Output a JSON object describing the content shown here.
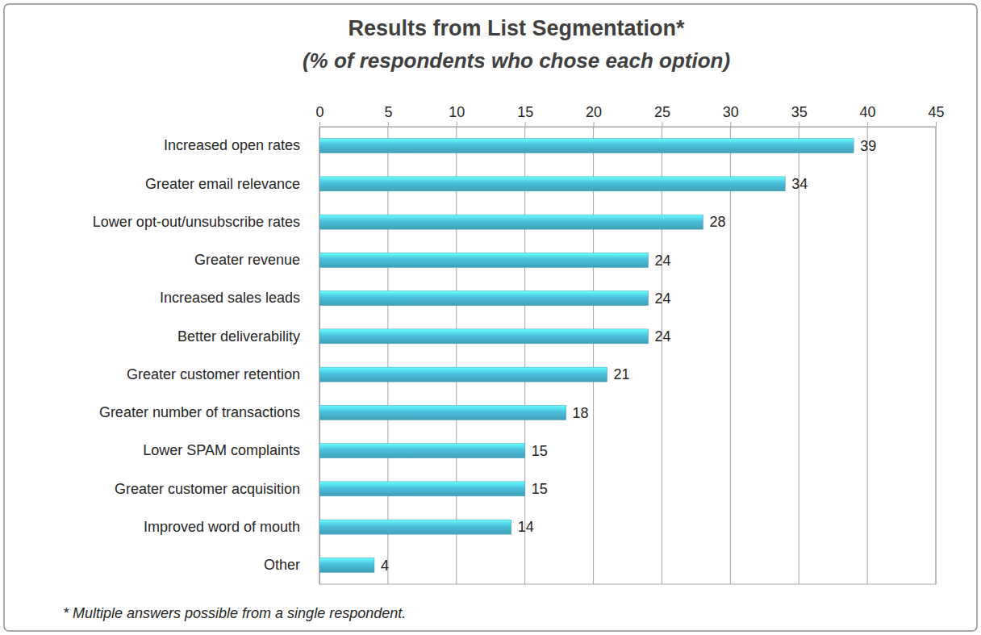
{
  "chart_data": {
    "type": "bar",
    "title": "Results from List Segmentation*",
    "subtitle": "(% of respondents who chose each option)",
    "annotations": [
      "* Multiple answers possible from a single respondent."
    ],
    "orientation": "horizontal",
    "categories": [
      "Increased open rates",
      "Greater email relevance",
      "Lower opt-out/unsubscribe rates",
      "Greater revenue",
      "Increased sales leads",
      "Better deliverability",
      "Greater customer retention",
      "Greater number of transactions",
      "Lower SPAM complaints",
      "Greater customer acquisition",
      "Improved word of mouth",
      "Other"
    ],
    "values": [
      39,
      34,
      28,
      24,
      24,
      24,
      21,
      18,
      15,
      15,
      14,
      4
    ],
    "color": "#4bbfdb",
    "xlim": [
      0,
      45
    ],
    "xticks": [
      0,
      5,
      10,
      15,
      20,
      25,
      30,
      35,
      40,
      45
    ],
    "grid": true,
    "data_labels": true
  }
}
